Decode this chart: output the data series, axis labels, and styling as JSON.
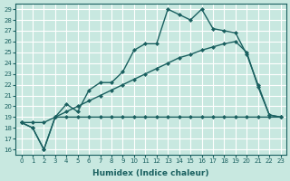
{
  "xlabel": "Humidex (Indice chaleur)",
  "bg_color": "#c8e8e0",
  "grid_color": "#ffffff",
  "line_color": "#1a6060",
  "xlim": [
    -0.5,
    23.5
  ],
  "ylim": [
    15.5,
    29.5
  ],
  "yticks": [
    16,
    17,
    18,
    19,
    20,
    21,
    22,
    23,
    24,
    25,
    26,
    27,
    28,
    29
  ],
  "xticks": [
    0,
    1,
    2,
    3,
    4,
    5,
    6,
    7,
    8,
    9,
    10,
    11,
    12,
    13,
    14,
    15,
    16,
    17,
    18,
    19,
    20,
    21,
    22,
    23
  ],
  "series": [
    {
      "x": [
        0,
        1,
        2,
        3,
        4,
        5,
        6,
        7,
        8,
        9,
        10,
        11,
        12,
        13,
        14,
        15,
        16,
        17,
        18,
        19,
        20,
        21,
        22,
        23
      ],
      "y": [
        18.5,
        18.0,
        16.0,
        19.0,
        20.2,
        19.5,
        21.5,
        22.2,
        22.2,
        23.2,
        25.2,
        25.8,
        25.8,
        29.0,
        28.5,
        28.0,
        29.0,
        27.2,
        27.0,
        26.8,
        24.8,
        22.0,
        19.2,
        19.0
      ],
      "marker": "D",
      "markersize": 2.0,
      "linewidth": 1.0
    },
    {
      "x": [
        0,
        1,
        2,
        3,
        4,
        5,
        6,
        7,
        8,
        9,
        10,
        11,
        12,
        13,
        14,
        15,
        16,
        17,
        18,
        19,
        20,
        21,
        22,
        23
      ],
      "y": [
        18.5,
        18.0,
        16.0,
        19.0,
        19.0,
        19.0,
        19.0,
        19.0,
        19.0,
        19.0,
        19.0,
        19.0,
        19.0,
        19.0,
        19.0,
        19.0,
        19.0,
        19.0,
        19.0,
        19.0,
        19.0,
        19.0,
        19.0,
        19.0
      ],
      "marker": "D",
      "markersize": 2.0,
      "linewidth": 1.0
    },
    {
      "x": [
        0,
        1,
        2,
        3,
        4,
        5,
        6,
        7,
        8,
        9,
        10,
        11,
        12,
        13,
        14,
        15,
        16,
        17,
        18,
        19,
        20,
        21,
        22,
        23
      ],
      "y": [
        18.5,
        18.5,
        18.5,
        19.0,
        19.5,
        20.0,
        20.5,
        21.0,
        21.5,
        22.0,
        22.5,
        23.0,
        23.5,
        24.0,
        24.5,
        24.8,
        25.2,
        25.5,
        25.8,
        26.0,
        25.0,
        21.8,
        19.2,
        19.0
      ],
      "marker": "D",
      "markersize": 2.0,
      "linewidth": 1.0
    }
  ]
}
